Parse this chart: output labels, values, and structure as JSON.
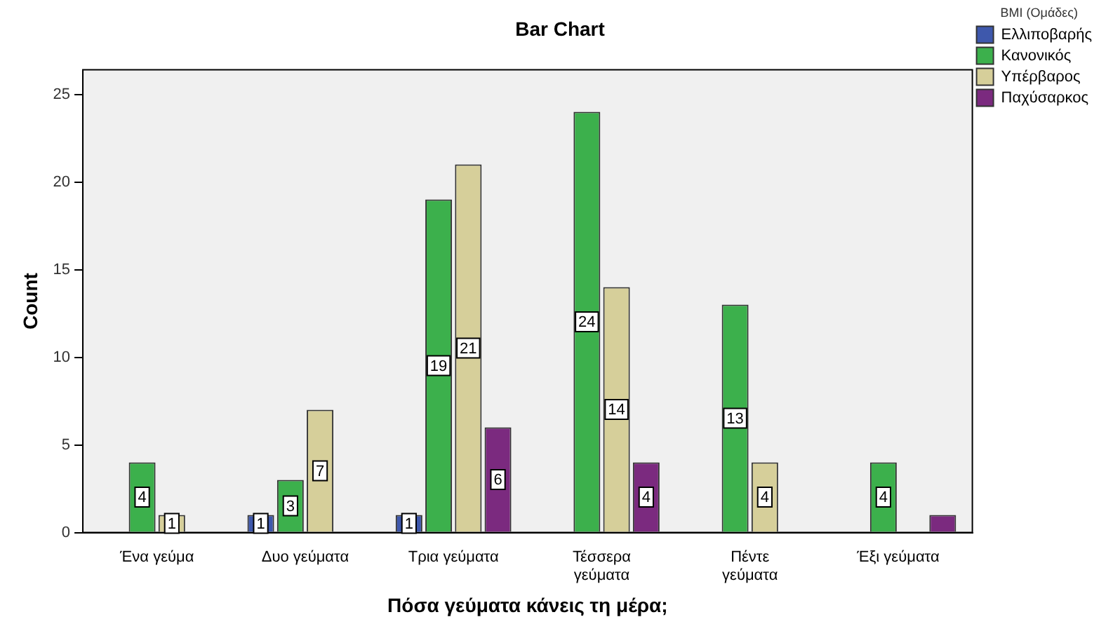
{
  "chart_data": {
    "type": "bar",
    "title": "Bar Chart",
    "xlabel": "Πόσα γεύματα κάνεις τη μέρα;",
    "ylabel": "Count",
    "legend_title": "BMI (Ομάδες)",
    "categories": [
      "Ένα γεύμα",
      "Δυο γεύματα",
      "Τρια γεύματα",
      "Τέσσερα γεύματα",
      "Πέντε γεύματα",
      "Έξι γεύματα"
    ],
    "series": [
      {
        "name": "Ελλιποβαρής",
        "color": "#3e58ac",
        "values": [
          null,
          1,
          1,
          null,
          null,
          null
        ],
        "value_labels": [
          null,
          "1",
          "1",
          null,
          null,
          null
        ]
      },
      {
        "name": "Κανονικός",
        "color": "#3cb04c",
        "values": [
          4,
          3,
          19,
          24,
          13,
          4
        ],
        "value_labels": [
          "4",
          "3",
          "19",
          "24",
          "13",
          "4"
        ]
      },
      {
        "name": "Υπέρβαρος",
        "color": "#d6cf9a",
        "values": [
          1,
          7,
          21,
          14,
          4,
          null
        ],
        "value_labels": [
          "1",
          "7",
          "21",
          "14",
          "4",
          null
        ]
      },
      {
        "name": "Παχύσαρκος",
        "color": "#7b2a7f",
        "values": [
          null,
          null,
          6,
          4,
          null,
          1
        ],
        "value_labels": [
          null,
          null,
          "6",
          "4",
          null,
          null
        ]
      }
    ],
    "ylim": [
      0,
      26.4
    ],
    "yticks": [
      0,
      5,
      10,
      15,
      20,
      25
    ],
    "grid": false,
    "legend": "top right"
  }
}
